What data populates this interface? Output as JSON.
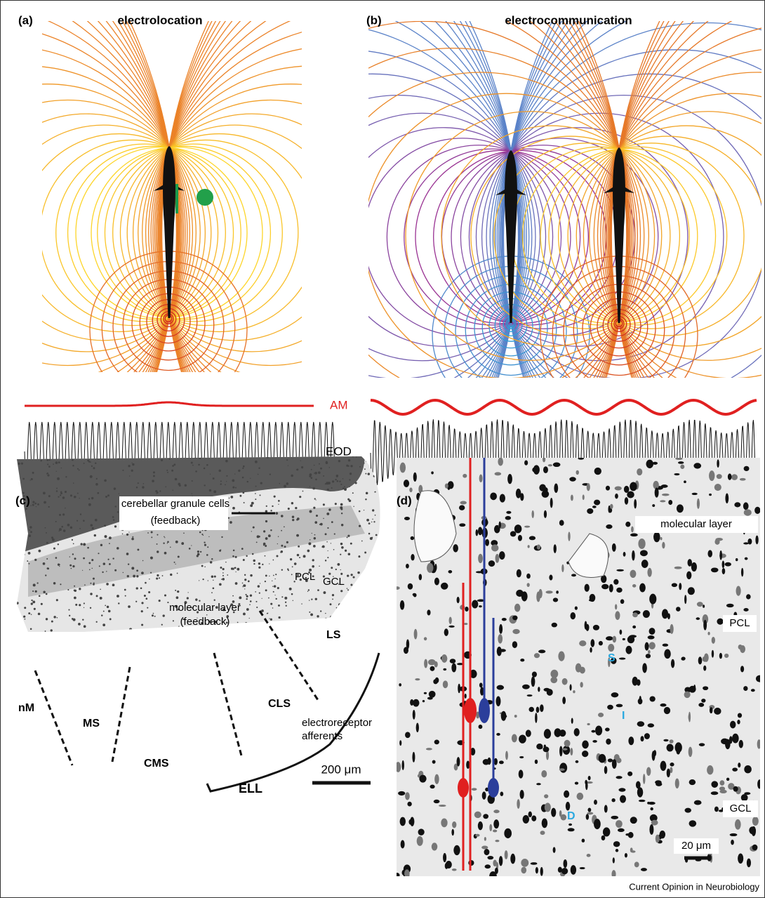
{
  "panel_a": {
    "label": "(a)",
    "title": "electrolocation"
  },
  "panel_b": {
    "label": "(b)",
    "title": "electrocommunication"
  },
  "signals": {
    "am": "AM",
    "eod": "EOD"
  },
  "panel_c": {
    "label": "(c)",
    "annotations": {
      "granule": "cerebellar granule cells",
      "granule_note": "(feedback)",
      "pcl": "PCL",
      "gcl": "GCL",
      "molecular": "molecular layer",
      "molecular_note": "(feedback)",
      "ls": "LS",
      "nm": "nM",
      "ms": "MS",
      "cls": "CLS",
      "afferents_1": "electroreceptor",
      "afferents_2": "afferents",
      "cms": "CMS",
      "ell": "ELL",
      "scale": "200 μm"
    }
  },
  "panel_d": {
    "label": "(d)",
    "annotations": {
      "molecular": "molecular layer",
      "pcl": "PCL",
      "s": "S",
      "i": "I",
      "gcl": "GCL",
      "d": "D",
      "scale": "20 μm"
    }
  },
  "footer": {
    "source": "Current Opinion in Neurobiology"
  }
}
